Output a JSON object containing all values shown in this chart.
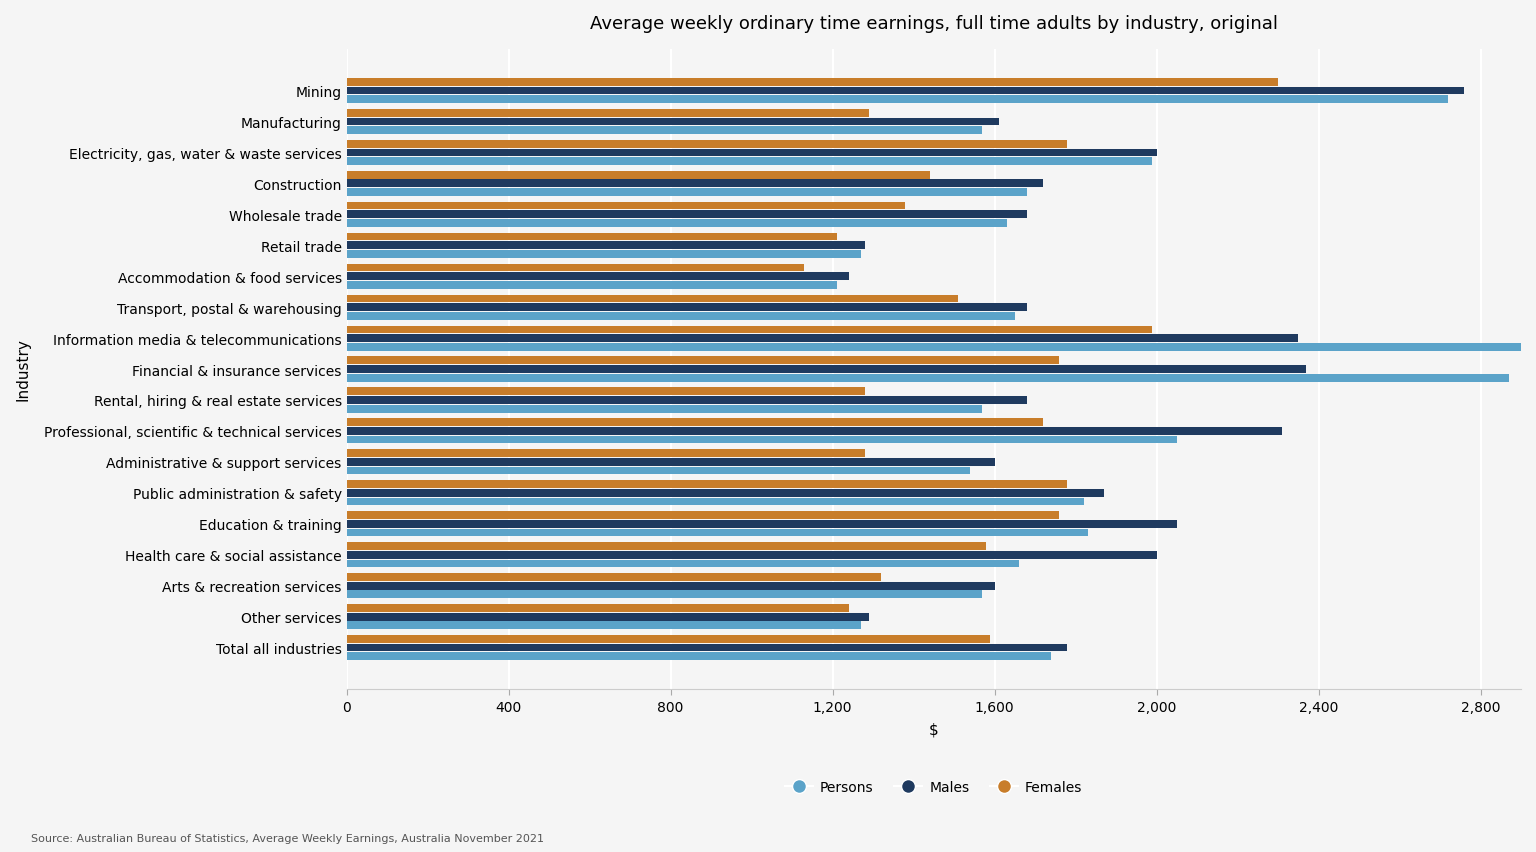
{
  "title": "Average weekly ordinary time earnings, full time adults by industry, original",
  "xlabel": "$",
  "ylabel": "Industry",
  "source": "Source: Australian Bureau of Statistics, Average Weekly Earnings, Australia November 2021",
  "categories": [
    "Mining",
    "Manufacturing",
    "Electricity, gas, water & waste services",
    "Construction",
    "Wholesale trade",
    "Retail trade",
    "Accommodation & food services",
    "Transport, postal & warehousing",
    "Information media & telecommunications",
    "Financial & insurance services",
    "Rental, hiring & real estate services",
    "Professional, scientific & technical services",
    "Administrative & support services",
    "Public administration & safety",
    "Education & training",
    "Health care & social assistance",
    "Arts & recreation services",
    "Other services",
    "Total all industries"
  ],
  "persons": [
    2720,
    1570,
    1990,
    1680,
    1630,
    1270,
    1210,
    1650,
    2900,
    2870,
    1570,
    2050,
    1540,
    1820,
    1830,
    1660,
    1570,
    1270,
    1740
  ],
  "males": [
    2760,
    1610,
    2000,
    1720,
    1680,
    1280,
    1240,
    1680,
    2350,
    2370,
    1680,
    2310,
    1600,
    1870,
    2050,
    2000,
    1600,
    1290,
    1780
  ],
  "females": [
    2300,
    1290,
    1780,
    1440,
    1380,
    1210,
    1130,
    1510,
    1990,
    1760,
    1280,
    1720,
    1280,
    1780,
    1760,
    1580,
    1320,
    1240,
    1590
  ],
  "color_persons": "#5ba3c9",
  "color_males": "#1f3a5f",
  "color_females": "#c87d2a",
  "xlim": [
    0,
    2900
  ],
  "xticks": [
    0,
    400,
    800,
    1200,
    1600,
    2000,
    2400,
    2800
  ],
  "xtick_labels": [
    "0",
    "400",
    "800",
    "1,200",
    "1,600",
    "2,000",
    "2,400",
    "2,800"
  ],
  "background_color": "#f5f5f5",
  "grid_color": "#ffffff",
  "title_fontsize": 13,
  "axis_label_fontsize": 11,
  "tick_fontsize": 10,
  "legend_fontsize": 10,
  "bar_height": 0.25,
  "bar_spacing": 0.28
}
